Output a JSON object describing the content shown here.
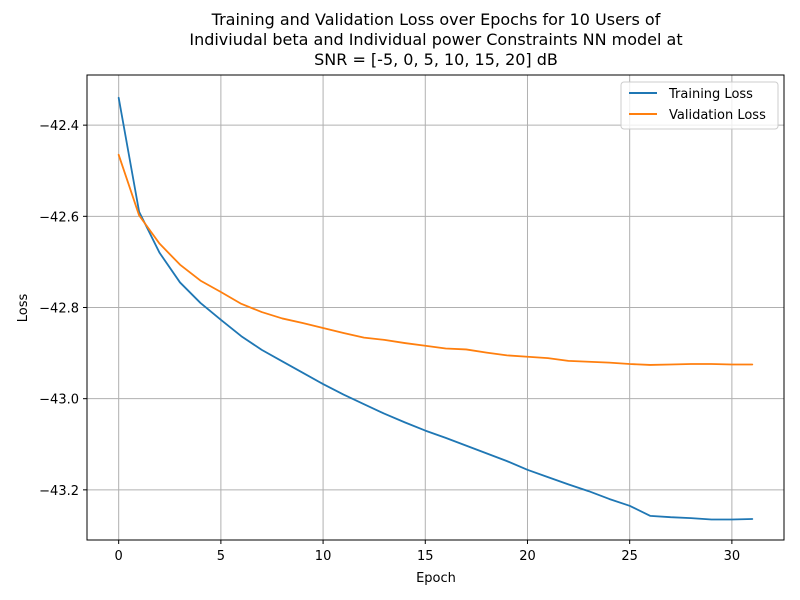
{
  "chart_data": {
    "type": "line",
    "title_lines": [
      "Training and Validation Loss over Epochs for 10 Users of",
      "Indiviudal beta and Individual power Constraints NN model at",
      "SNR = [-5, 0, 5, 10, 15, 20] dB"
    ],
    "xlabel": "Epoch",
    "ylabel": "Loss",
    "xlim": [
      -1.55,
      32.55
    ],
    "ylim": [
      -43.31,
      -42.29
    ],
    "xticks": [
      0,
      5,
      10,
      15,
      20,
      25,
      30
    ],
    "yticks": [
      -43.2,
      -43.0,
      -42.8,
      -42.6,
      -42.4
    ],
    "ytick_labels": [
      "−43.2",
      "−43.0",
      "−42.8",
      "−42.6",
      "−42.4"
    ],
    "grid": true,
    "legend_position": "top-right",
    "x": [
      0,
      1,
      2,
      3,
      4,
      5,
      6,
      7,
      8,
      9,
      10,
      11,
      12,
      13,
      14,
      15,
      16,
      17,
      18,
      19,
      20,
      21,
      22,
      23,
      24,
      25,
      26,
      27,
      28,
      29,
      30,
      31
    ],
    "series": [
      {
        "name": "Training Loss",
        "color": "#1f77b4",
        "values": [
          -42.34,
          -42.59,
          -42.68,
          -42.745,
          -42.79,
          -42.827,
          -42.863,
          -42.893,
          -42.918,
          -42.943,
          -42.968,
          -42.991,
          -43.012,
          -43.033,
          -43.052,
          -43.07,
          -43.086,
          -43.103,
          -43.12,
          -43.137,
          -43.156,
          -43.172,
          -43.188,
          -43.203,
          -43.22,
          -43.235,
          -43.257,
          -43.26,
          -43.262,
          -43.265,
          -43.265,
          -43.264
        ]
      },
      {
        "name": "Validation Loss",
        "color": "#ff7f0e",
        "values": [
          -42.465,
          -42.598,
          -42.66,
          -42.706,
          -42.741,
          -42.766,
          -42.792,
          -42.81,
          -42.824,
          -42.834,
          -42.845,
          -42.856,
          -42.866,
          -42.871,
          -42.878,
          -42.884,
          -42.89,
          -42.892,
          -42.899,
          -42.905,
          -42.908,
          -42.911,
          -42.917,
          -42.919,
          -42.921,
          -42.924,
          -42.926,
          -42.925,
          -42.924,
          -42.924,
          -42.925,
          -42.925
        ]
      }
    ]
  }
}
